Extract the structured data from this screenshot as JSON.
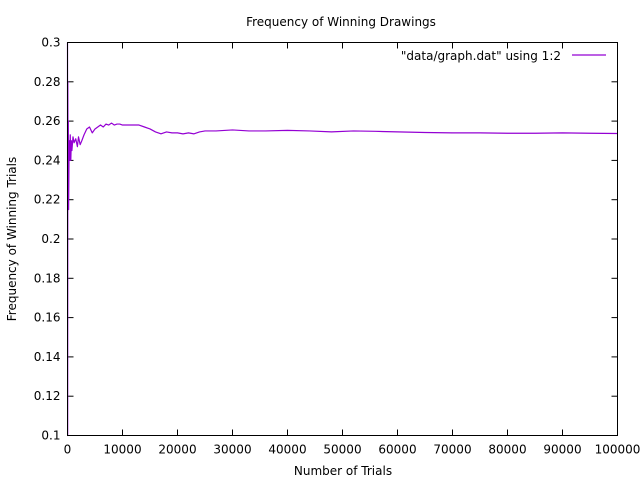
{
  "chart_data": {
    "type": "line",
    "title": "Frequency of Winning Drawings",
    "xlabel": "Number of Trials",
    "ylabel": "Frequency of Winning Trials",
    "xlim": [
      0,
      100000
    ],
    "ylim": [
      0.1,
      0.3
    ],
    "x_ticks": [
      0,
      10000,
      20000,
      30000,
      40000,
      50000,
      60000,
      70000,
      80000,
      90000,
      100000
    ],
    "x_tick_labels": [
      "0",
      "10000",
      "20000",
      "30000",
      "40000",
      "50000",
      "60000",
      "70000",
      "80000",
      "90000",
      "100000"
    ],
    "y_ticks": [
      0.1,
      0.12,
      0.14,
      0.16,
      0.18,
      0.2,
      0.22,
      0.24,
      0.26,
      0.28,
      0.3
    ],
    "y_tick_labels": [
      "0.1",
      "0.12",
      "0.14",
      "0.16",
      "0.18",
      "0.2",
      "0.22",
      "0.24",
      "0.26",
      "0.28",
      "0.3"
    ],
    "grid": false,
    "legend_position": "top-right",
    "series": [
      {
        "name": "\"data/graph.dat\" using 1:2",
        "color": "#9400d3",
        "x": [
          1,
          30,
          60,
          100,
          150,
          200,
          300,
          400,
          500,
          600,
          700,
          800,
          1000,
          1200,
          1500,
          1800,
          2000,
          2300,
          2600,
          3000,
          3500,
          4000,
          4500,
          5000,
          5500,
          6000,
          6500,
          7000,
          7500,
          8000,
          8500,
          9000,
          9500,
          10000,
          11000,
          12000,
          13000,
          14000,
          15000,
          16000,
          17000,
          18000,
          19000,
          20000,
          21000,
          22000,
          23000,
          24000,
          25000,
          27000,
          30000,
          33000,
          36000,
          40000,
          44000,
          48000,
          52000,
          56000,
          60000,
          65000,
          70000,
          75000,
          80000,
          85000,
          90000,
          95000,
          100000
        ],
        "y": [
          0.3,
          0.1,
          0.28,
          0.22,
          0.26,
          0.215,
          0.25,
          0.24,
          0.253,
          0.24,
          0.25,
          0.245,
          0.252,
          0.249,
          0.251,
          0.247,
          0.252,
          0.248,
          0.25,
          0.253,
          0.256,
          0.257,
          0.254,
          0.256,
          0.257,
          0.258,
          0.257,
          0.2585,
          0.258,
          0.259,
          0.258,
          0.2585,
          0.2585,
          0.258,
          0.258,
          0.258,
          0.258,
          0.257,
          0.256,
          0.2545,
          0.2535,
          0.2545,
          0.254,
          0.254,
          0.2535,
          0.254,
          0.2535,
          0.2545,
          0.255,
          0.255,
          0.2555,
          0.255,
          0.255,
          0.2553,
          0.255,
          0.2545,
          0.255,
          0.2548,
          0.2545,
          0.2542,
          0.254,
          0.254,
          0.2538,
          0.2538,
          0.254,
          0.2538,
          0.2537
        ]
      }
    ]
  }
}
